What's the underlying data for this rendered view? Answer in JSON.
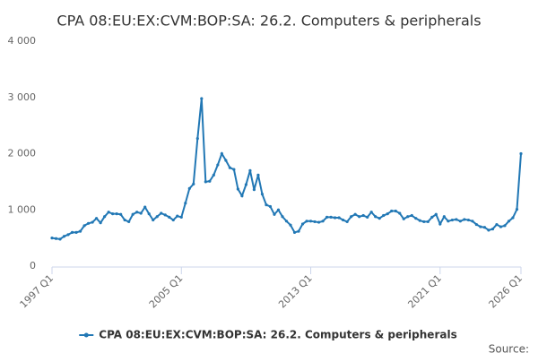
{
  "chart_data": {
    "type": "line",
    "title": "CPA 08:EU:EX:CVM:BOP:SA: 26.2. Computers & peripherals",
    "source": "Source:",
    "categories": [
      "1997 Q1",
      null,
      null,
      null,
      null,
      null,
      null,
      null,
      null,
      null,
      null,
      null,
      null,
      null,
      null,
      null,
      null,
      null,
      null,
      null,
      null,
      null,
      null,
      null,
      null,
      null,
      null,
      null,
      null,
      null,
      null,
      null,
      "2005 Q1",
      null,
      null,
      null,
      null,
      null,
      null,
      null,
      null,
      null,
      null,
      null,
      null,
      null,
      null,
      null,
      null,
      null,
      null,
      null,
      null,
      null,
      null,
      null,
      null,
      null,
      null,
      null,
      null,
      null,
      null,
      null,
      "2013 Q1",
      null,
      null,
      null,
      null,
      null,
      null,
      null,
      null,
      null,
      null,
      null,
      null,
      null,
      null,
      null,
      null,
      null,
      null,
      null,
      null,
      null,
      null,
      null,
      null,
      null,
      null,
      null,
      null,
      null,
      null,
      null,
      "2021 Q1",
      null,
      null,
      null,
      null,
      null,
      null,
      null,
      null,
      null,
      null,
      null,
      null,
      null,
      null,
      null,
      null,
      null,
      null,
      null,
      "2026 Q1"
    ],
    "series": [
      {
        "name": "CPA 08:EU:EX:CVM:BOP:SA: 26.2. Computers & peripherals",
        "color": "#2278b5",
        "values": [
          500,
          490,
          480,
          530,
          560,
          600,
          600,
          620,
          720,
          760,
          780,
          850,
          770,
          880,
          960,
          930,
          930,
          920,
          820,
          790,
          920,
          960,
          940,
          1050,
          930,
          820,
          880,
          940,
          910,
          870,
          820,
          890,
          870,
          1120,
          1380,
          1460,
          2270,
          2980,
          1500,
          1510,
          1620,
          1800,
          2000,
          1880,
          1750,
          1720,
          1370,
          1250,
          1450,
          1700,
          1360,
          1620,
          1280,
          1090,
          1060,
          920,
          1000,
          880,
          800,
          730,
          600,
          620,
          750,
          800,
          800,
          790,
          780,
          800,
          870,
          870,
          860,
          860,
          820,
          790,
          880,
          920,
          880,
          900,
          870,
          960,
          880,
          850,
          900,
          930,
          980,
          980,
          940,
          840,
          880,
          900,
          850,
          810,
          790,
          790,
          870,
          920,
          750,
          880,
          800,
          820,
          830,
          800,
          830,
          820,
          800,
          740,
          700,
          690,
          640,
          660,
          740,
          700,
          720,
          800,
          860,
          1010,
          2000
        ]
      }
    ],
    "ylim": [
      0,
      4000
    ],
    "yticks": [
      0,
      {
        "value": 1000,
        "label": "1 000"
      },
      {
        "value": 2000,
        "label": "2 000"
      },
      {
        "value": 3000,
        "label": "3 000"
      },
      {
        "value": 4000,
        "label": "4 000"
      }
    ],
    "grid": false
  }
}
